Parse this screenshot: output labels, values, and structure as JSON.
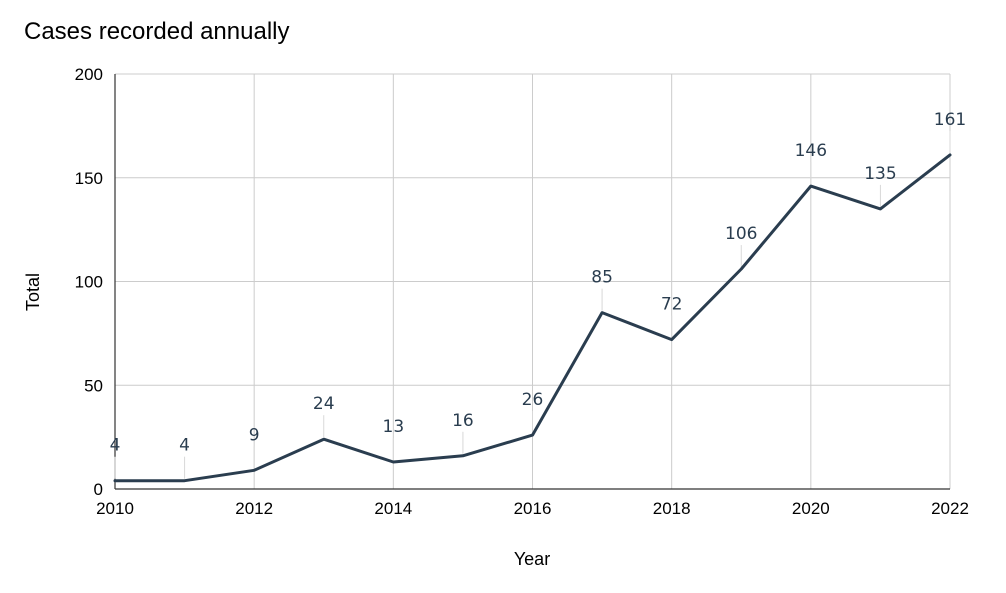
{
  "chart_data": {
    "type": "line",
    "title": "Cases recorded annually",
    "xlabel": "Year",
    "ylabel": "Total",
    "x": [
      2010,
      2011,
      2012,
      2013,
      2014,
      2015,
      2016,
      2017,
      2018,
      2019,
      2020,
      2021,
      2022
    ],
    "xlim": [
      2010,
      2022
    ],
    "xticks": [
      "2010",
      "2012",
      "2014",
      "2016",
      "2018",
      "2020",
      "2022"
    ],
    "ylim": [
      0,
      200
    ],
    "yticks": [
      "0",
      "50",
      "100",
      "150",
      "200"
    ],
    "series": [
      {
        "values": [
          4,
          4,
          9,
          24,
          13,
          16,
          26,
          85,
          72,
          106,
          146,
          135,
          161
        ],
        "color": "#2a3d4f"
      }
    ],
    "grid": true,
    "legend": "none"
  }
}
